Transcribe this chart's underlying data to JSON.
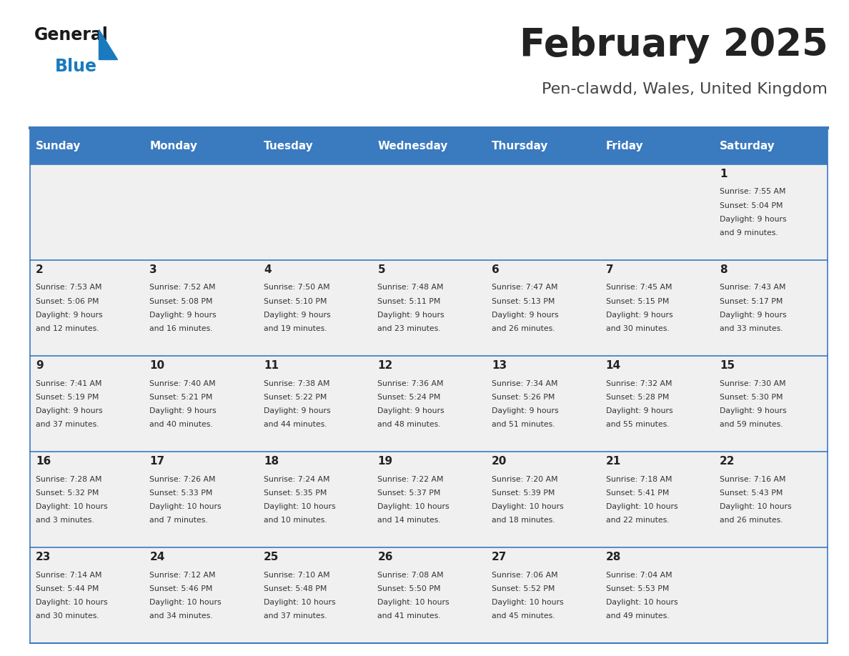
{
  "title": "February 2025",
  "subtitle": "Pen-clawdd, Wales, United Kingdom",
  "days_of_week": [
    "Sunday",
    "Monday",
    "Tuesday",
    "Wednesday",
    "Thursday",
    "Friday",
    "Saturday"
  ],
  "header_bg": "#3a7abf",
  "header_text": "#ffffff",
  "cell_bg_light": "#f0f0f0",
  "separator_color": "#3a7abf",
  "title_color": "#222222",
  "subtitle_color": "#444444",
  "day_num_color": "#222222",
  "cell_text_color": "#333333",
  "logo_black": "#1a1a1a",
  "logo_blue": "#1a7abf",
  "calendar": [
    [
      {
        "day": null,
        "sunrise": null,
        "sunset": null,
        "daylight": null
      },
      {
        "day": null,
        "sunrise": null,
        "sunset": null,
        "daylight": null
      },
      {
        "day": null,
        "sunrise": null,
        "sunset": null,
        "daylight": null
      },
      {
        "day": null,
        "sunrise": null,
        "sunset": null,
        "daylight": null
      },
      {
        "day": null,
        "sunrise": null,
        "sunset": null,
        "daylight": null
      },
      {
        "day": null,
        "sunrise": null,
        "sunset": null,
        "daylight": null
      },
      {
        "day": 1,
        "sunrise": "7:55 AM",
        "sunset": "5:04 PM",
        "daylight": "9 hours\nand 9 minutes."
      }
    ],
    [
      {
        "day": 2,
        "sunrise": "7:53 AM",
        "sunset": "5:06 PM",
        "daylight": "9 hours\nand 12 minutes."
      },
      {
        "day": 3,
        "sunrise": "7:52 AM",
        "sunset": "5:08 PM",
        "daylight": "9 hours\nand 16 minutes."
      },
      {
        "day": 4,
        "sunrise": "7:50 AM",
        "sunset": "5:10 PM",
        "daylight": "9 hours\nand 19 minutes."
      },
      {
        "day": 5,
        "sunrise": "7:48 AM",
        "sunset": "5:11 PM",
        "daylight": "9 hours\nand 23 minutes."
      },
      {
        "day": 6,
        "sunrise": "7:47 AM",
        "sunset": "5:13 PM",
        "daylight": "9 hours\nand 26 minutes."
      },
      {
        "day": 7,
        "sunrise": "7:45 AM",
        "sunset": "5:15 PM",
        "daylight": "9 hours\nand 30 minutes."
      },
      {
        "day": 8,
        "sunrise": "7:43 AM",
        "sunset": "5:17 PM",
        "daylight": "9 hours\nand 33 minutes."
      }
    ],
    [
      {
        "day": 9,
        "sunrise": "7:41 AM",
        "sunset": "5:19 PM",
        "daylight": "9 hours\nand 37 minutes."
      },
      {
        "day": 10,
        "sunrise": "7:40 AM",
        "sunset": "5:21 PM",
        "daylight": "9 hours\nand 40 minutes."
      },
      {
        "day": 11,
        "sunrise": "7:38 AM",
        "sunset": "5:22 PM",
        "daylight": "9 hours\nand 44 minutes."
      },
      {
        "day": 12,
        "sunrise": "7:36 AM",
        "sunset": "5:24 PM",
        "daylight": "9 hours\nand 48 minutes."
      },
      {
        "day": 13,
        "sunrise": "7:34 AM",
        "sunset": "5:26 PM",
        "daylight": "9 hours\nand 51 minutes."
      },
      {
        "day": 14,
        "sunrise": "7:32 AM",
        "sunset": "5:28 PM",
        "daylight": "9 hours\nand 55 minutes."
      },
      {
        "day": 15,
        "sunrise": "7:30 AM",
        "sunset": "5:30 PM",
        "daylight": "9 hours\nand 59 minutes."
      }
    ],
    [
      {
        "day": 16,
        "sunrise": "7:28 AM",
        "sunset": "5:32 PM",
        "daylight": "10 hours\nand 3 minutes."
      },
      {
        "day": 17,
        "sunrise": "7:26 AM",
        "sunset": "5:33 PM",
        "daylight": "10 hours\nand 7 minutes."
      },
      {
        "day": 18,
        "sunrise": "7:24 AM",
        "sunset": "5:35 PM",
        "daylight": "10 hours\nand 10 minutes."
      },
      {
        "day": 19,
        "sunrise": "7:22 AM",
        "sunset": "5:37 PM",
        "daylight": "10 hours\nand 14 minutes."
      },
      {
        "day": 20,
        "sunrise": "7:20 AM",
        "sunset": "5:39 PM",
        "daylight": "10 hours\nand 18 minutes."
      },
      {
        "day": 21,
        "sunrise": "7:18 AM",
        "sunset": "5:41 PM",
        "daylight": "10 hours\nand 22 minutes."
      },
      {
        "day": 22,
        "sunrise": "7:16 AM",
        "sunset": "5:43 PM",
        "daylight": "10 hours\nand 26 minutes."
      }
    ],
    [
      {
        "day": 23,
        "sunrise": "7:14 AM",
        "sunset": "5:44 PM",
        "daylight": "10 hours\nand 30 minutes."
      },
      {
        "day": 24,
        "sunrise": "7:12 AM",
        "sunset": "5:46 PM",
        "daylight": "10 hours\nand 34 minutes."
      },
      {
        "day": 25,
        "sunrise": "7:10 AM",
        "sunset": "5:48 PM",
        "daylight": "10 hours\nand 37 minutes."
      },
      {
        "day": 26,
        "sunrise": "7:08 AM",
        "sunset": "5:50 PM",
        "daylight": "10 hours\nand 41 minutes."
      },
      {
        "day": 27,
        "sunrise": "7:06 AM",
        "sunset": "5:52 PM",
        "daylight": "10 hours\nand 45 minutes."
      },
      {
        "day": 28,
        "sunrise": "7:04 AM",
        "sunset": "5:53 PM",
        "daylight": "10 hours\nand 49 minutes."
      },
      {
        "day": null,
        "sunrise": null,
        "sunset": null,
        "daylight": null
      }
    ]
  ]
}
